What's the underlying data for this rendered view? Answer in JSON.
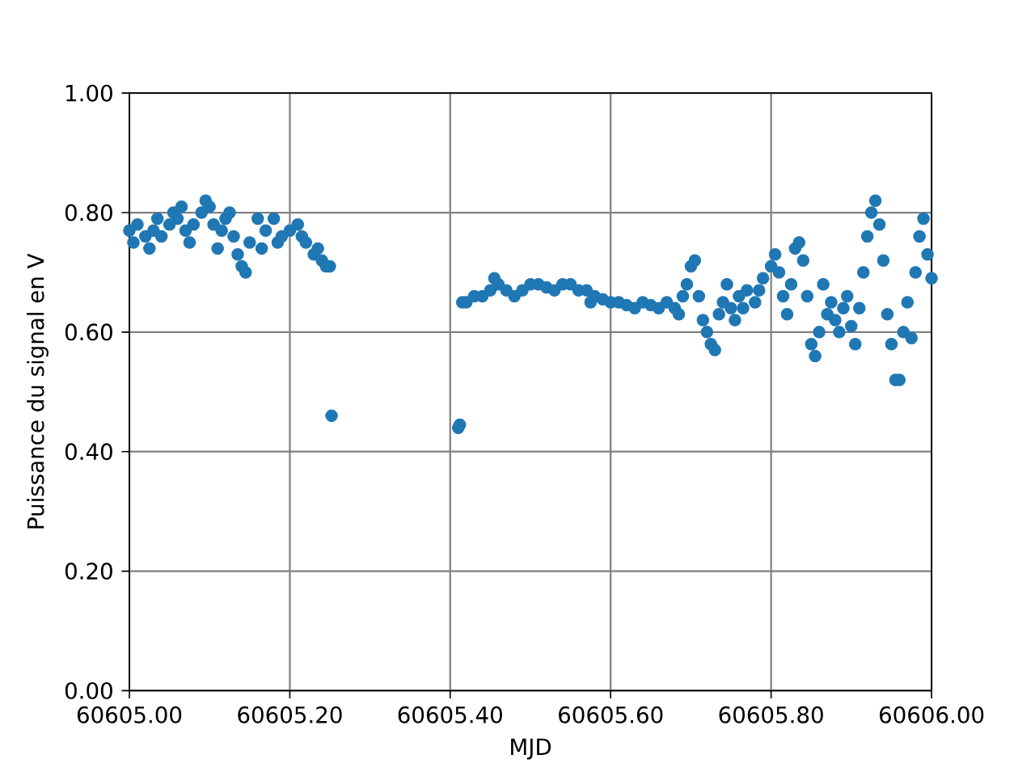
{
  "chart_data": {
    "type": "scatter",
    "xlabel": "MJD",
    "ylabel": "Puissance du signal en V",
    "color": "#1f77b4",
    "marker": "circle",
    "grid": true,
    "xlim": [
      60605.0,
      60606.0
    ],
    "ylim": [
      0,
      1
    ],
    "xticks": [
      {
        "value": 60605.0,
        "label": "60605.00"
      },
      {
        "value": 60605.2,
        "label": "60605.20"
      },
      {
        "value": 60605.4,
        "label": "60605.40"
      },
      {
        "value": 60605.6,
        "label": "60605.60"
      },
      {
        "value": 60605.8,
        "label": "60605.80"
      },
      {
        "value": 60606.0,
        "label": "60606.00"
      }
    ],
    "yticks": [
      {
        "value": 0,
        "label": "0.00"
      },
      {
        "value": 0.2,
        "label": "0.20"
      },
      {
        "value": 0.4,
        "label": "0.40"
      },
      {
        "value": 0.6,
        "label": "0.60"
      },
      {
        "value": 0.8,
        "label": "0.80"
      },
      {
        "value": 1.0,
        "label": "1.00"
      }
    ],
    "x": [
      60605.0,
      60605.005,
      60605.01,
      60605.02,
      60605.025,
      60605.03,
      60605.035,
      60605.04,
      60605.05,
      60605.055,
      60605.06,
      60605.065,
      60605.07,
      60605.075,
      60605.08,
      60605.09,
      60605.095,
      60605.1,
      60605.105,
      60605.11,
      60605.115,
      60605.12,
      60605.125,
      60605.13,
      60605.135,
      60605.14,
      60605.145,
      60605.15,
      60605.16,
      60605.165,
      60605.17,
      60605.18,
      60605.185,
      60605.19,
      60605.2,
      60605.21,
      60605.215,
      60605.22,
      60605.23,
      60605.235,
      60605.24,
      60605.245,
      60605.25,
      60605.252,
      60605.41,
      60605.412,
      60605.415,
      60605.42,
      60605.43,
      60605.44,
      60605.45,
      60605.455,
      60605.46,
      60605.47,
      60605.48,
      60605.49,
      60605.5,
      60605.51,
      60605.52,
      60605.53,
      60605.54,
      60605.55,
      60605.56,
      60605.57,
      60605.575,
      60605.58,
      60605.59,
      60605.6,
      60605.61,
      60605.62,
      60605.63,
      60605.64,
      60605.65,
      60605.66,
      60605.67,
      60605.68,
      60605.685,
      60605.69,
      60605.695,
      60605.7,
      60605.705,
      60605.71,
      60605.715,
      60605.72,
      60605.725,
      60605.73,
      60605.735,
      60605.74,
      60605.745,
      60605.75,
      60605.755,
      60605.76,
      60605.765,
      60605.77,
      60605.78,
      60605.785,
      60605.79,
      60605.8,
      60605.805,
      60605.81,
      60605.815,
      60605.82,
      60605.825,
      60605.83,
      60605.835,
      60605.84,
      60605.845,
      60605.85,
      60605.855,
      60605.86,
      60605.865,
      60605.87,
      60605.875,
      60605.88,
      60605.885,
      60605.89,
      60605.895,
      60605.9,
      60605.905,
      60605.91,
      60605.915,
      60605.92,
      60605.925,
      60605.93,
      60605.935,
      60605.94,
      60605.945,
      60605.95,
      60605.955,
      60605.96,
      60605.965,
      60605.97,
      60605.975,
      60605.98,
      60605.985,
      60605.99,
      60605.995,
      60606.0
    ],
    "values": [
      0.77,
      0.75,
      0.78,
      0.76,
      0.74,
      0.77,
      0.79,
      0.76,
      0.78,
      0.8,
      0.79,
      0.81,
      0.77,
      0.75,
      0.78,
      0.8,
      0.82,
      0.81,
      0.78,
      0.74,
      0.77,
      0.79,
      0.8,
      0.76,
      0.73,
      0.71,
      0.7,
      0.75,
      0.79,
      0.74,
      0.77,
      0.79,
      0.75,
      0.76,
      0.77,
      0.78,
      0.76,
      0.75,
      0.73,
      0.74,
      0.72,
      0.71,
      0.71,
      0.46,
      0.44,
      0.445,
      0.65,
      0.65,
      0.66,
      0.66,
      0.67,
      0.69,
      0.68,
      0.67,
      0.66,
      0.67,
      0.68,
      0.68,
      0.675,
      0.67,
      0.68,
      0.68,
      0.67,
      0.67,
      0.65,
      0.66,
      0.655,
      0.65,
      0.65,
      0.645,
      0.64,
      0.65,
      0.645,
      0.64,
      0.65,
      0.64,
      0.63,
      0.66,
      0.68,
      0.71,
      0.72,
      0.66,
      0.62,
      0.6,
      0.58,
      0.57,
      0.63,
      0.65,
      0.68,
      0.64,
      0.62,
      0.66,
      0.64,
      0.67,
      0.65,
      0.67,
      0.69,
      0.71,
      0.73,
      0.7,
      0.66,
      0.63,
      0.68,
      0.74,
      0.75,
      0.72,
      0.66,
      0.58,
      0.56,
      0.6,
      0.68,
      0.63,
      0.65,
      0.62,
      0.6,
      0.64,
      0.66,
      0.61,
      0.58,
      0.64,
      0.7,
      0.76,
      0.8,
      0.82,
      0.78,
      0.72,
      0.63,
      0.58,
      0.52,
      0.52,
      0.6,
      0.65,
      0.59,
      0.7,
      0.76,
      0.79,
      0.73,
      0.69
    ]
  }
}
